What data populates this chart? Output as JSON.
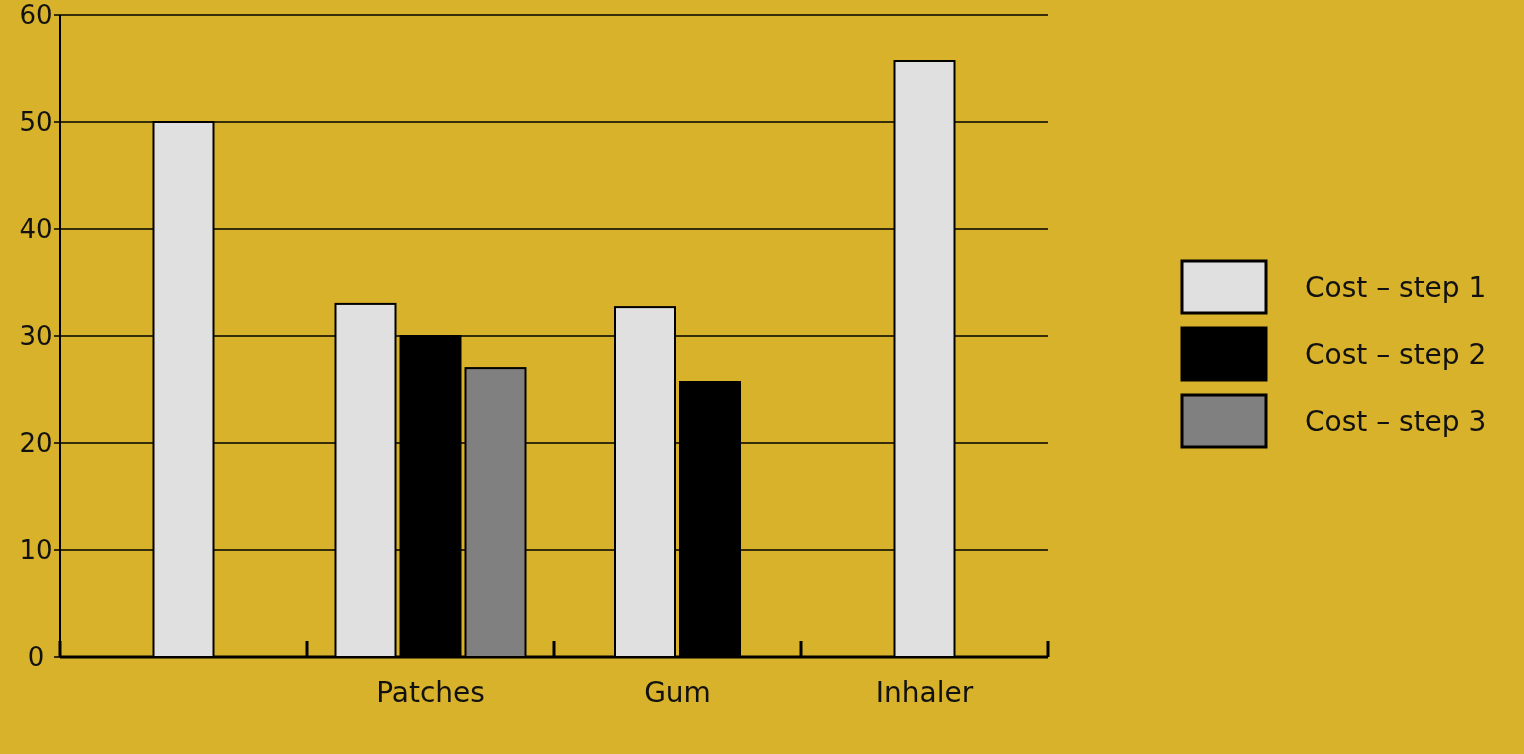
{
  "chart_data": {
    "type": "bar",
    "categories": [
      null,
      "Patches",
      "Gum",
      "Inhaler"
    ],
    "series": [
      {
        "name": "Cost – step 1",
        "color": "#e0e0e0",
        "values": [
          50,
          33,
          32.7,
          55.7
        ]
      },
      {
        "name": "Cost – step 2",
        "color": "#000000",
        "values": [
          null,
          30,
          25.7,
          null
        ]
      },
      {
        "name": "Cost – step 3",
        "color": "#808080",
        "values": [
          null,
          27,
          null,
          null
        ]
      }
    ],
    "ylim": [
      0,
      60
    ],
    "yticks": [
      0,
      10,
      20,
      30,
      40,
      50,
      60
    ],
    "grid": "y",
    "legend": "right"
  }
}
